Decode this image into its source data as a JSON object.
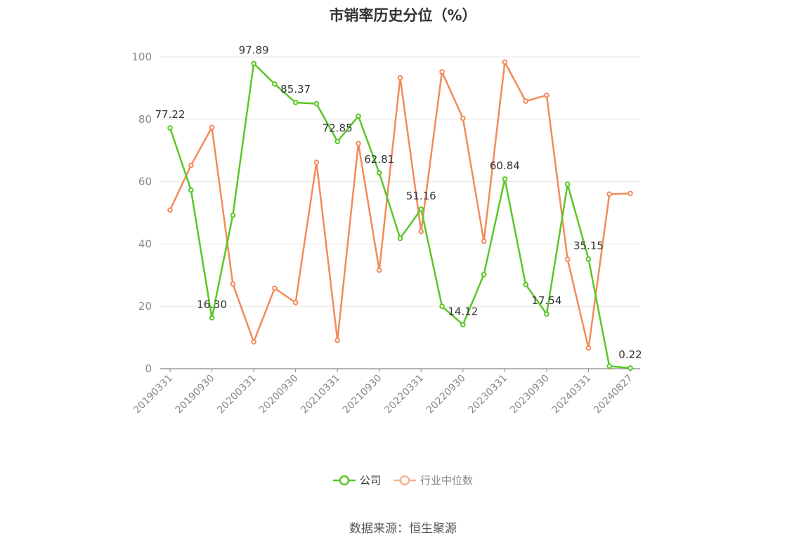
{
  "chart_data": {
    "type": "line",
    "title": "市销率历史分位（%）",
    "source": "数据来源：恒生聚源",
    "y_ticks": [
      "0",
      "20",
      "40",
      "60",
      "80",
      "100"
    ],
    "ylim": [
      0,
      100
    ],
    "x_tick_labels": [
      "20190331",
      "20190930",
      "20200331",
      "20200930",
      "20210331",
      "20210930",
      "20220331",
      "20220930",
      "20230331",
      "20230930",
      "20240331",
      "20240827"
    ],
    "x": [
      "20190331",
      "20190630",
      "20190930",
      "20191231",
      "20200331",
      "20200630",
      "20200930",
      "20201231",
      "20210331",
      "20210630",
      "20210930",
      "20211231",
      "20220331",
      "20220630",
      "20220930",
      "20221231",
      "20230331",
      "20230630",
      "20230930",
      "20231231",
      "20240331",
      "20240630",
      "20240827"
    ],
    "grid": true,
    "legend_position": "bottom",
    "series": [
      {
        "name": "公司",
        "color": "#5ac726",
        "values": [
          77.22,
          57.3,
          16.3,
          49.2,
          97.89,
          91.3,
          85.37,
          85.0,
          72.85,
          81.0,
          62.81,
          41.8,
          51.16,
          20.0,
          14.12,
          30.2,
          60.84,
          27.0,
          17.54,
          59.2,
          35.15,
          0.8,
          0.22
        ],
        "labels": {
          "0": "77.22",
          "2": "16.30",
          "4": "97.89",
          "6": "85.37",
          "8": "72.85",
          "10": "62.81",
          "12": "51.16",
          "14": "14.12",
          "16": "60.84",
          "18": "17.54",
          "20": "35.15",
          "22": "0.22"
        }
      },
      {
        "name": "行业中位数",
        "color": "#f28b5b",
        "values": [
          50.9,
          65.2,
          77.4,
          27.2,
          8.6,
          25.8,
          21.2,
          66.2,
          9.1,
          72.2,
          31.6,
          93.3,
          44.0,
          95.2,
          80.3,
          40.9,
          98.3,
          85.8,
          87.7,
          35.1,
          6.6,
          56.0,
          56.2
        ],
        "labels": {}
      }
    ]
  }
}
